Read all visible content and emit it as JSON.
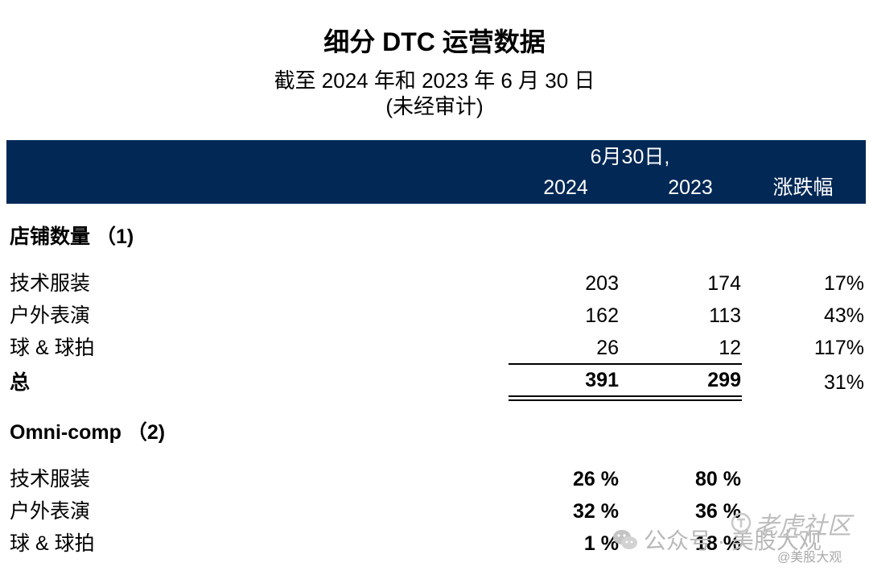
{
  "title": "细分 DTC 运营数据",
  "subtitle_line1": "截至 2024 年和 2023 年 6 月 30 日",
  "subtitle_line2": "(未经审计)",
  "header": {
    "date_label": "6月30日,",
    "year1": "2024",
    "year2": "2023",
    "change_label": "涨跌幅"
  },
  "store_section": {
    "heading": "店铺数量 （1)",
    "rows": [
      {
        "label": "技术服装",
        "v2024": "203",
        "v2023": "174",
        "change": "17%"
      },
      {
        "label": "户外表演",
        "v2024": "162",
        "v2023": "113",
        "change": "43%"
      },
      {
        "label": "球 & 球拍",
        "v2024": "26",
        "v2023": "12",
        "change": "117%"
      }
    ],
    "total": {
      "label": "总",
      "v2024": "391",
      "v2023": "299",
      "change": "31%"
    }
  },
  "omni_section": {
    "heading": "Omni-comp （2)",
    "rows": [
      {
        "label": "技术服装",
        "v2024": "26 %",
        "v2023": "80 %"
      },
      {
        "label": "户外表演",
        "v2024": "32 %",
        "v2023": "36 %"
      },
      {
        "label": "球 & 球拍",
        "v2024": "1 %",
        "v2023": "18 %"
      }
    ]
  },
  "watermarks": {
    "wechat": "公众号 · 美股大观",
    "tiger": "老虎社区",
    "handle": "@美股大观"
  }
}
